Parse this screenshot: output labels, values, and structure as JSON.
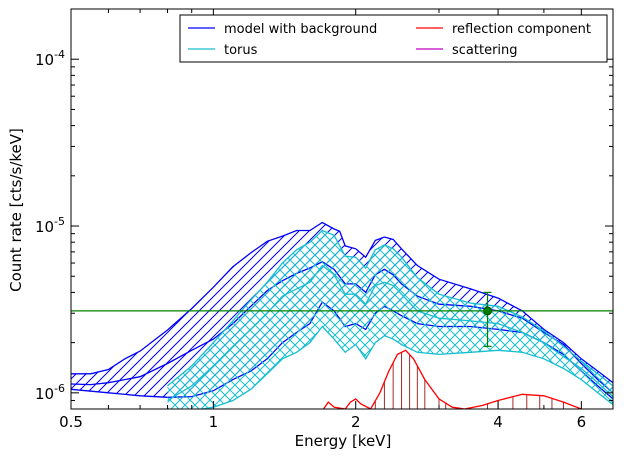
{
  "chart_data": {
    "type": "line",
    "xlabel": "Energy [keV]",
    "ylabel": "Count rate [cts/s/keV]",
    "xscale": "log",
    "yscale": "log",
    "xlim": [
      0.5,
      7.0
    ],
    "ylim": [
      8e-07,
      0.0002
    ],
    "x_ticks": [
      {
        "value": 0.5,
        "label": "0.5"
      },
      {
        "value": 1,
        "label": "1"
      },
      {
        "value": 2,
        "label": "2"
      },
      {
        "value": 4,
        "label": "4"
      },
      {
        "value": 6,
        "label": "6"
      }
    ],
    "y_ticks": [
      {
        "value": 1e-06,
        "base": "10",
        "exp": "-6"
      },
      {
        "value": 1e-05,
        "base": "10",
        "exp": "-5"
      },
      {
        "value": 0.0001,
        "base": "10",
        "exp": "-4"
      }
    ],
    "grid": false,
    "legend": {
      "placement": "top-right",
      "columns": 2,
      "entries": [
        {
          "label": "model with background",
          "color": "#0000ff"
        },
        {
          "label": "torus",
          "color": "#17becf"
        },
        {
          "label": "reflection component",
          "color": "#ff0000"
        },
        {
          "label": "scattering",
          "color": "#bf00bf"
        }
      ]
    },
    "series": [
      {
        "name": "model with background",
        "color": "#0000ff",
        "band_hatch": "diagonal",
        "upper": [
          [
            0.5,
            1.3e-06
          ],
          [
            0.55,
            1.3e-06
          ],
          [
            0.6,
            1.38e-06
          ],
          [
            0.65,
            1.6e-06
          ],
          [
            0.7,
            1.78e-06
          ],
          [
            0.8,
            2.38e-06
          ],
          [
            0.9,
            3.2e-06
          ],
          [
            1.0,
            4.3e-06
          ],
          [
            1.1,
            5.7e-06
          ],
          [
            1.2,
            6.9e-06
          ],
          [
            1.3,
            8.1e-06
          ],
          [
            1.4,
            8.7e-06
          ],
          [
            1.5,
            9.4e-06
          ],
          [
            1.6,
            9.4e-06
          ],
          [
            1.7,
            1.05e-05
          ],
          [
            1.8,
            9.6e-06
          ],
          [
            1.85,
            9.3e-06
          ],
          [
            1.9,
            7.6e-06
          ],
          [
            2.0,
            7.3e-06
          ],
          [
            2.1,
            6.5e-06
          ],
          [
            2.2,
            8.2e-06
          ],
          [
            2.3,
            8.6e-06
          ],
          [
            2.4,
            8.3e-06
          ],
          [
            2.5,
            7.3e-06
          ],
          [
            2.7,
            5.8e-06
          ],
          [
            3.0,
            4.8e-06
          ],
          [
            3.5,
            4.2e-06
          ],
          [
            4.0,
            3.7e-06
          ],
          [
            4.5,
            3.1e-06
          ],
          [
            5.0,
            2.4e-06
          ],
          [
            5.5,
            2e-06
          ],
          [
            6.0,
            1.6e-06
          ],
          [
            6.5,
            1.35e-06
          ],
          [
            7.0,
            1.15e-06
          ]
        ],
        "middle": [
          [
            0.5,
            1.13e-06
          ],
          [
            0.55,
            1.12e-06
          ],
          [
            0.6,
            1.15e-06
          ],
          [
            0.7,
            1.25e-06
          ],
          [
            0.8,
            1.5e-06
          ],
          [
            0.9,
            1.8e-06
          ],
          [
            1.0,
            2.1e-06
          ],
          [
            1.1,
            2.6e-06
          ],
          [
            1.2,
            3.3e-06
          ],
          [
            1.3,
            4.1e-06
          ],
          [
            1.4,
            4.7e-06
          ],
          [
            1.5,
            5.2e-06
          ],
          [
            1.6,
            5.6e-06
          ],
          [
            1.7,
            6.1e-06
          ],
          [
            1.8,
            5.5e-06
          ],
          [
            1.9,
            4.5e-06
          ],
          [
            2.0,
            4.5e-06
          ],
          [
            2.1,
            4e-06
          ],
          [
            2.2,
            5.1e-06
          ],
          [
            2.3,
            5.5e-06
          ],
          [
            2.4,
            5.1e-06
          ],
          [
            2.5,
            4.5e-06
          ],
          [
            2.7,
            3.8e-06
          ],
          [
            3.0,
            3.4e-06
          ],
          [
            3.5,
            3.3e-06
          ],
          [
            4.0,
            3.1e-06
          ],
          [
            4.5,
            2.8e-06
          ],
          [
            5.0,
            2.3e-06
          ],
          [
            5.5,
            1.95e-06
          ],
          [
            6.0,
            1.5e-06
          ],
          [
            6.5,
            1.2e-06
          ],
          [
            7.0,
            1e-06
          ]
        ],
        "lower": [
          [
            0.5,
            1.05e-06
          ],
          [
            0.6,
            1e-06
          ],
          [
            0.7,
            9.6e-07
          ],
          [
            0.8,
            9.4e-07
          ],
          [
            0.9,
            9.5e-07
          ],
          [
            1.0,
            1.03e-06
          ],
          [
            1.1,
            1.2e-06
          ],
          [
            1.2,
            1.35e-06
          ],
          [
            1.3,
            1.6e-06
          ],
          [
            1.4,
            2e-06
          ],
          [
            1.5,
            2.3e-06
          ],
          [
            1.6,
            2.6e-06
          ],
          [
            1.7,
            3.5e-06
          ],
          [
            1.8,
            3.1e-06
          ],
          [
            1.9,
            2.5e-06
          ],
          [
            2.0,
            2.6e-06
          ],
          [
            2.1,
            2.4e-06
          ],
          [
            2.2,
            3e-06
          ],
          [
            2.3,
            3.3e-06
          ],
          [
            2.4,
            3.1e-06
          ],
          [
            2.5,
            2.9e-06
          ],
          [
            2.7,
            2.6e-06
          ],
          [
            3.0,
            2.5e-06
          ],
          [
            3.5,
            2.5e-06
          ],
          [
            4.0,
            2.4e-06
          ],
          [
            4.5,
            2.3e-06
          ],
          [
            5.0,
            2e-06
          ],
          [
            5.5,
            1.7e-06
          ],
          [
            6.0,
            1.35e-06
          ],
          [
            6.5,
            1.1e-06
          ],
          [
            7.0,
            9.2e-07
          ]
        ]
      },
      {
        "name": "torus",
        "color": "#17becf",
        "band_hatch": "cross",
        "upper": [
          [
            0.8,
            1.1e-06
          ],
          [
            0.9,
            1.45e-06
          ],
          [
            1.0,
            2e-06
          ],
          [
            1.1,
            2.7e-06
          ],
          [
            1.2,
            3.6e-06
          ],
          [
            1.3,
            4.6e-06
          ],
          [
            1.4,
            6e-06
          ],
          [
            1.5,
            7.2e-06
          ],
          [
            1.6,
            8e-06
          ],
          [
            1.7,
            9.4e-06
          ],
          [
            1.8,
            8.8e-06
          ],
          [
            1.9,
            6.6e-06
          ],
          [
            2.0,
            6.5e-06
          ],
          [
            2.1,
            5.6e-06
          ],
          [
            2.2,
            7.2e-06
          ],
          [
            2.3,
            7.7e-06
          ],
          [
            2.4,
            7.3e-06
          ],
          [
            2.5,
            6.5e-06
          ],
          [
            2.7,
            4.9e-06
          ],
          [
            3.0,
            3.9e-06
          ],
          [
            3.5,
            3.45e-06
          ],
          [
            4.0,
            3.3e-06
          ],
          [
            4.5,
            2.85e-06
          ],
          [
            5.0,
            2.35e-06
          ],
          [
            5.5,
            1.9e-06
          ],
          [
            6.0,
            1.55e-06
          ],
          [
            6.5,
            1.3e-06
          ],
          [
            7.0,
            1.1e-06
          ]
        ],
        "middle": [
          [
            0.8,
            9e-07
          ],
          [
            0.9,
            1.1e-06
          ],
          [
            1.0,
            1.45e-06
          ],
          [
            1.1,
            1.9e-06
          ],
          [
            1.2,
            2.4e-06
          ],
          [
            1.3,
            3e-06
          ],
          [
            1.4,
            3.8e-06
          ],
          [
            1.5,
            4.2e-06
          ],
          [
            1.6,
            4.6e-06
          ],
          [
            1.7,
            5.8e-06
          ],
          [
            1.8,
            5.1e-06
          ],
          [
            1.9,
            3.9e-06
          ],
          [
            2.0,
            3.9e-06
          ],
          [
            2.1,
            3.4e-06
          ],
          [
            2.2,
            4.4e-06
          ],
          [
            2.3,
            4.6e-06
          ],
          [
            2.4,
            4.4e-06
          ],
          [
            2.5,
            3.9e-06
          ],
          [
            2.7,
            3.1e-06
          ],
          [
            3.0,
            2.8e-06
          ],
          [
            3.5,
            2.7e-06
          ],
          [
            4.0,
            2.6e-06
          ],
          [
            4.5,
            2.3e-06
          ],
          [
            5.0,
            2e-06
          ],
          [
            5.5,
            1.65e-06
          ],
          [
            6.0,
            1.4e-06
          ],
          [
            6.5,
            1.15e-06
          ],
          [
            7.0,
            9.5e-07
          ]
        ],
        "lower": [
          [
            0.8,
            7.5e-07
          ],
          [
            0.9,
            7.8e-07
          ],
          [
            1.0,
            8.2e-07
          ],
          [
            1.1,
            9e-07
          ],
          [
            1.2,
            1.05e-06
          ],
          [
            1.3,
            1.3e-06
          ],
          [
            1.4,
            1.6e-06
          ],
          [
            1.5,
            1.75e-06
          ],
          [
            1.6,
            2e-06
          ],
          [
            1.7,
            2.5e-06
          ],
          [
            1.8,
            2.1e-06
          ],
          [
            1.9,
            1.75e-06
          ],
          [
            2.0,
            1.95e-06
          ],
          [
            2.1,
            1.6e-06
          ],
          [
            2.2,
            2e-06
          ],
          [
            2.3,
            2.2e-06
          ],
          [
            2.4,
            2.1e-06
          ],
          [
            2.5,
            1.95e-06
          ],
          [
            2.7,
            1.75e-06
          ],
          [
            3.0,
            1.7e-06
          ],
          [
            3.5,
            1.75e-06
          ],
          [
            4.0,
            1.8e-06
          ],
          [
            4.5,
            1.75e-06
          ],
          [
            5.0,
            1.6e-06
          ],
          [
            5.5,
            1.4e-06
          ],
          [
            6.0,
            1.2e-06
          ],
          [
            6.5,
            1e-06
          ],
          [
            7.0,
            8.5e-07
          ]
        ]
      },
      {
        "name": "reflection component",
        "color": "#ff0000",
        "band_hatch": "vertical",
        "line": [
          [
            1.7,
            7.8e-07
          ],
          [
            1.75,
            8.8e-07
          ],
          [
            1.8,
            8.2e-07
          ],
          [
            1.9,
            8e-07
          ],
          [
            1.95,
            8.8e-07
          ],
          [
            2.0,
            9.2e-07
          ],
          [
            2.05,
            8.6e-07
          ],
          [
            2.15,
            8e-07
          ],
          [
            2.25,
            1e-06
          ],
          [
            2.35,
            1.35e-06
          ],
          [
            2.45,
            1.7e-06
          ],
          [
            2.55,
            1.8e-06
          ],
          [
            2.65,
            1.6e-06
          ],
          [
            2.8,
            1.2e-06
          ],
          [
            3.0,
            9.2e-07
          ],
          [
            3.2,
            8.2e-07
          ],
          [
            3.4,
            8e-07
          ],
          [
            3.7,
            8.4e-07
          ],
          [
            4.0,
            9e-07
          ],
          [
            4.5,
            9.8e-07
          ],
          [
            5.0,
            9.6e-07
          ],
          [
            5.5,
            8.8e-07
          ],
          [
            6.0,
            8e-07
          ]
        ],
        "stems": [
          2.2,
          2.3,
          2.4,
          2.5,
          2.6,
          2.7,
          2.8,
          3.0,
          3.1,
          3.8,
          4.0,
          4.3,
          4.6,
          4.9,
          5.2,
          5.5
        ]
      },
      {
        "name": "data",
        "color": "#008000",
        "points": [
          {
            "x": 3.8,
            "y": 3.1e-06,
            "y_err_low": 1.9e-06,
            "y_err_high": 4e-06
          }
        ]
      }
    ],
    "horizontal_line": {
      "y": 3.1e-06,
      "color": "#008000"
    }
  }
}
